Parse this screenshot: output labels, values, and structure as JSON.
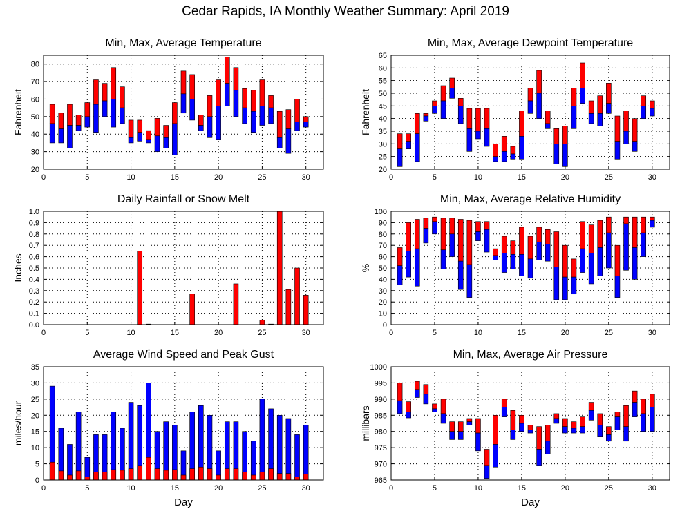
{
  "page": {
    "title": "Cedar Rapids, IA Monthly Weather Summary: April 2019"
  },
  "chart_data": [
    {
      "id": "temp",
      "type": "range-bar",
      "title": "Min, Max, Average Temperature",
      "xlabel": "",
      "ylabel": "Fahrenheit",
      "xlim": [
        0,
        32
      ],
      "ylim": [
        20,
        85
      ],
      "yticks": [
        20,
        30,
        40,
        50,
        60,
        70,
        80
      ],
      "xticks": [
        0,
        5,
        10,
        15,
        20,
        25,
        30
      ],
      "colors": {
        "upper": "#ff0000",
        "lower": "#0000ff"
      },
      "x": [
        1,
        2,
        3,
        4,
        5,
        6,
        7,
        8,
        9,
        10,
        11,
        12,
        13,
        14,
        15,
        16,
        17,
        18,
        19,
        20,
        21,
        22,
        23,
        24,
        25,
        26,
        27,
        28,
        29,
        30
      ],
      "min": [
        35,
        35,
        32,
        42,
        44,
        41,
        50,
        44,
        46,
        35,
        36,
        35,
        30,
        32,
        28,
        52,
        48,
        42,
        38,
        37,
        56,
        50,
        46,
        41,
        45,
        46,
        32,
        29,
        42,
        44
      ],
      "max": [
        57,
        52,
        57,
        51,
        58,
        71,
        69,
        78,
        67,
        48,
        48,
        42,
        49,
        45,
        58,
        76,
        74,
        51,
        62,
        71,
        84,
        78,
        66,
        65,
        71,
        62,
        53,
        54,
        60,
        50
      ],
      "avg": [
        46,
        43,
        45,
        45,
        50,
        57,
        59,
        60,
        55,
        38,
        41,
        37,
        39,
        38,
        46,
        63,
        60,
        45,
        50,
        56,
        69,
        65,
        55,
        53,
        56,
        55,
        38,
        43,
        47,
        47
      ]
    },
    {
      "id": "dewpoint",
      "type": "range-bar",
      "title": "Min, Max, Average Dewpoint Temperature",
      "xlabel": "",
      "ylabel": "Fahrenheit",
      "xlim": [
        0,
        32
      ],
      "ylim": [
        20,
        65
      ],
      "yticks": [
        20,
        25,
        30,
        35,
        40,
        45,
        50,
        55,
        60,
        65
      ],
      "xticks": [
        0,
        5,
        10,
        15,
        20,
        25,
        30
      ],
      "colors": {
        "upper": "#ff0000",
        "lower": "#0000ff"
      },
      "x": [
        1,
        2,
        3,
        4,
        5,
        6,
        7,
        8,
        9,
        10,
        11,
        12,
        13,
        14,
        15,
        16,
        17,
        18,
        19,
        20,
        21,
        22,
        23,
        24,
        25,
        26,
        27,
        28,
        29,
        30
      ],
      "min": [
        21,
        28,
        23,
        39,
        42,
        40,
        48,
        38,
        27,
        32,
        29,
        23,
        23,
        24,
        24,
        42,
        40,
        36,
        22,
        21,
        36,
        46,
        38,
        37,
        42,
        24,
        30,
        27,
        40,
        41
      ],
      "max": [
        34,
        34,
        42,
        42,
        47,
        53,
        56,
        48,
        44,
        44,
        44,
        30,
        33,
        29,
        43,
        52,
        59,
        43,
        36,
        37,
        52,
        62,
        47,
        49,
        54,
        41,
        43,
        40,
        49,
        47
      ],
      "avg": [
        28,
        31,
        34,
        41,
        45,
        47,
        52,
        45,
        36,
        35,
        36,
        25,
        27,
        26,
        33,
        47,
        50,
        38,
        30,
        30,
        45,
        52,
        42,
        42,
        46,
        31,
        35,
        31,
        45,
        44
      ]
    },
    {
      "id": "rain",
      "type": "bar",
      "title": "Daily Rainfall or Snow Melt",
      "xlabel": "",
      "ylabel": "Inches",
      "xlim": [
        0,
        32
      ],
      "ylim": [
        0,
        1.0
      ],
      "yticks": [
        0.0,
        0.1,
        0.2,
        0.3,
        0.4,
        0.5,
        0.6,
        0.7,
        0.8,
        0.9,
        1.0
      ],
      "xticks": [
        0,
        5,
        10,
        15,
        20,
        25,
        30
      ],
      "colors": {
        "bar": "#ff0000"
      },
      "x": [
        1,
        2,
        3,
        4,
        5,
        6,
        7,
        8,
        9,
        10,
        11,
        12,
        13,
        14,
        15,
        16,
        17,
        18,
        19,
        20,
        21,
        22,
        23,
        24,
        25,
        26,
        27,
        28,
        29,
        30
      ],
      "values": [
        0,
        0,
        0,
        0,
        0,
        0,
        0,
        0,
        0,
        0,
        0.65,
        0.005,
        0,
        0,
        0,
        0,
        0.27,
        0,
        0,
        0,
        0,
        0.36,
        0,
        0,
        0.04,
        0.005,
        1.0,
        0.31,
        0.5,
        0.26
      ]
    },
    {
      "id": "rh",
      "type": "range-bar",
      "title": "Min, Max, Average Relative Humidity",
      "xlabel": "",
      "ylabel": "%",
      "xlim": [
        0,
        32
      ],
      "ylim": [
        0,
        100
      ],
      "yticks": [
        0,
        10,
        20,
        30,
        40,
        50,
        60,
        70,
        80,
        90,
        100
      ],
      "xticks": [
        0,
        5,
        10,
        15,
        20,
        25,
        30
      ],
      "colors": {
        "upper": "#ff0000",
        "lower": "#0000ff"
      },
      "x": [
        1,
        2,
        3,
        4,
        5,
        6,
        7,
        8,
        9,
        10,
        11,
        12,
        13,
        14,
        15,
        16,
        17,
        18,
        19,
        20,
        21,
        22,
        23,
        24,
        25,
        26,
        27,
        28,
        29,
        30
      ],
      "min": [
        35,
        42,
        34,
        72,
        80,
        49,
        60,
        31,
        24,
        74,
        64,
        57,
        46,
        49,
        43,
        41,
        57,
        56,
        22,
        22,
        27,
        46,
        36,
        43,
        50,
        24,
        48,
        40,
        60,
        86
      ],
      "max": [
        68,
        90,
        93,
        94,
        95,
        94,
        94,
        93,
        92,
        91,
        91,
        67,
        78,
        74,
        86,
        78,
        86,
        84,
        82,
        70,
        58,
        91,
        88,
        92,
        95,
        70,
        95,
        95,
        95,
        95
      ],
      "avg": [
        52,
        65,
        67,
        85,
        91,
        66,
        80,
        56,
        53,
        82,
        84,
        61,
        63,
        62,
        62,
        58,
        73,
        71,
        51,
        42,
        42,
        67,
        63,
        68,
        81,
        43,
        89,
        68,
        81,
        92
      ]
    },
    {
      "id": "wind",
      "type": "stacked-bar",
      "title": "Average Wind Speed and Peak Gust",
      "xlabel": "Day",
      "ylabel": "miles/hour",
      "xlim": [
        0,
        32
      ],
      "ylim": [
        0,
        35
      ],
      "yticks": [
        0,
        5,
        10,
        15,
        20,
        25,
        30,
        35
      ],
      "xticks": [
        0,
        5,
        10,
        15,
        20,
        25,
        30
      ],
      "colors": {
        "gust": "#0000ff",
        "avg": "#ff0000"
      },
      "x": [
        1,
        2,
        3,
        4,
        5,
        6,
        7,
        8,
        9,
        10,
        11,
        12,
        13,
        14,
        15,
        16,
        17,
        18,
        19,
        20,
        21,
        22,
        23,
        24,
        25,
        26,
        27,
        28,
        29,
        30
      ],
      "peak_gust": [
        29,
        16,
        11,
        21,
        7,
        14,
        14,
        21,
        16,
        24,
        23,
        30,
        15,
        18,
        17,
        9,
        21,
        23,
        20,
        9,
        18,
        18,
        15,
        12,
        25,
        22,
        20,
        19,
        14,
        17
      ],
      "avg_speed": [
        5.5,
        2.8,
        1.5,
        2.8,
        1.0,
        2.5,
        2.5,
        3.2,
        3.0,
        3.5,
        4.5,
        7.0,
        3.5,
        3.0,
        3.2,
        1.5,
        3.5,
        4.0,
        3.5,
        1.5,
        3.5,
        3.5,
        2.5,
        1.5,
        2.5,
        3.5,
        2.0,
        2.0,
        1.0,
        1.8
      ]
    },
    {
      "id": "pressure",
      "type": "range-bar",
      "title": "Min, Max, Average Air Pressure",
      "xlabel": "Day",
      "ylabel": "millibars",
      "xlim": [
        0,
        32
      ],
      "ylim": [
        965,
        1000
      ],
      "yticks": [
        965,
        970,
        975,
        980,
        985,
        990,
        995,
        1000
      ],
      "xticks": [
        0,
        5,
        10,
        15,
        20,
        25,
        30
      ],
      "colors": {
        "upper": "#ff0000",
        "lower": "#0000ff"
      },
      "x": [
        1,
        2,
        3,
        4,
        5,
        6,
        7,
        8,
        9,
        10,
        11,
        12,
        13,
        14,
        15,
        16,
        17,
        18,
        19,
        20,
        21,
        22,
        23,
        24,
        25,
        26,
        27,
        28,
        29,
        30
      ],
      "min": [
        985.5,
        984.2,
        990.5,
        988.5,
        986.0,
        982.5,
        977.5,
        977.5,
        982.0,
        974.0,
        965.5,
        969.0,
        984.5,
        977.5,
        980.0,
        979.5,
        969.5,
        973.0,
        982.5,
        979.5,
        979.5,
        979.5,
        983.5,
        978.5,
        977.0,
        980.5,
        977.0,
        984.5,
        980.0,
        980.0
      ],
      "max": [
        995.0,
        989.2,
        995.5,
        994.5,
        988.5,
        990.0,
        983.0,
        983.0,
        984.0,
        984.0,
        974.5,
        985.0,
        990.0,
        986.5,
        985.0,
        982.0,
        981.5,
        982.0,
        985.5,
        984.0,
        983.0,
        984.5,
        989.0,
        985.5,
        981.5,
        986.0,
        988.0,
        992.5,
        990.0,
        991.5
      ],
      "avg": [
        989.5,
        986.0,
        993.0,
        991.5,
        987.0,
        985.5,
        980.0,
        980.0,
        983.0,
        979.5,
        969.5,
        976.0,
        987.5,
        980.5,
        982.5,
        980.5,
        974.5,
        977.0,
        984.0,
        981.5,
        981.0,
        981.5,
        986.5,
        982.0,
        979.0,
        984.5,
        981.5,
        989.0,
        985.5,
        987.5
      ]
    }
  ]
}
